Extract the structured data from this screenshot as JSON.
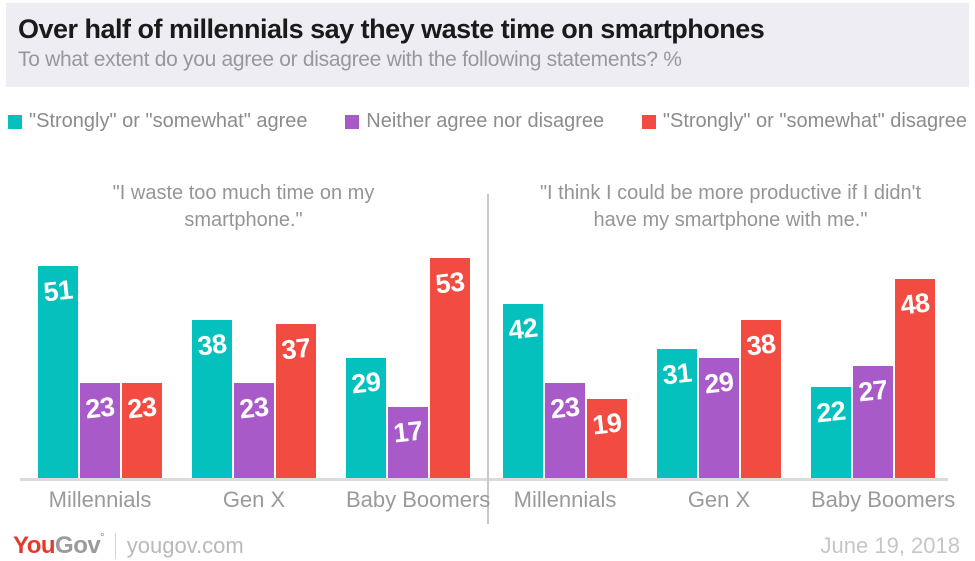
{
  "header": {
    "title": "Over half of millennials say they waste time on smartphones",
    "subtitle": "To what extent do you agree or disagree with the following statements? %",
    "bg_color": "#EDEDF3"
  },
  "legend": {
    "items": [
      {
        "label": "\"Strongly\" or \"somewhat\" agree",
        "color": "#04C1BE"
      },
      {
        "label": "Neither agree nor disagree",
        "color": "#A85BC8"
      },
      {
        "label": "\"Strongly\" or \"somewhat\" disagree",
        "color": "#F14B42"
      }
    ]
  },
  "chart_data": [
    {
      "type": "bar",
      "title": "\"I waste too much time on my smartphone.\"",
      "categories": [
        "Millennials",
        "Gen X",
        "Baby Boomers"
      ],
      "series": [
        {
          "name": "\"Strongly\" or \"somewhat\" agree",
          "color": "#04C1BE",
          "values": [
            51,
            38,
            29
          ]
        },
        {
          "name": "Neither agree nor disagree",
          "color": "#A85BC8",
          "values": [
            23,
            23,
            17
          ]
        },
        {
          "name": "\"Strongly\" or \"somewhat\" disagree",
          "color": "#F14B42",
          "values": [
            23,
            37,
            53
          ]
        }
      ],
      "unit": "%",
      "ylim": [
        0,
        55
      ],
      "grid": false,
      "data_labels": true,
      "legend_position": "top"
    },
    {
      "type": "bar",
      "title": "\"I think I could be more productive if I didn't have my smartphone with me.\"",
      "categories": [
        "Millennials",
        "Gen X",
        "Baby Boomers"
      ],
      "series": [
        {
          "name": "\"Strongly\" or \"somewhat\" agree",
          "color": "#04C1BE",
          "values": [
            42,
            31,
            22
          ]
        },
        {
          "name": "Neither agree nor disagree",
          "color": "#A85BC8",
          "values": [
            23,
            29,
            27
          ]
        },
        {
          "name": "\"Strongly\" or \"somewhat\" disagree",
          "color": "#F14B42",
          "values": [
            19,
            38,
            48
          ]
        }
      ],
      "unit": "%",
      "ylim": [
        0,
        55
      ],
      "grid": false,
      "data_labels": true,
      "legend_position": "top"
    }
  ],
  "footer": {
    "logo_you": "You",
    "logo_gov": "Gov",
    "logo_mark": "°",
    "site": "yougov.com",
    "date": "June 19, 2018",
    "logo_red": "#E43A2B"
  }
}
